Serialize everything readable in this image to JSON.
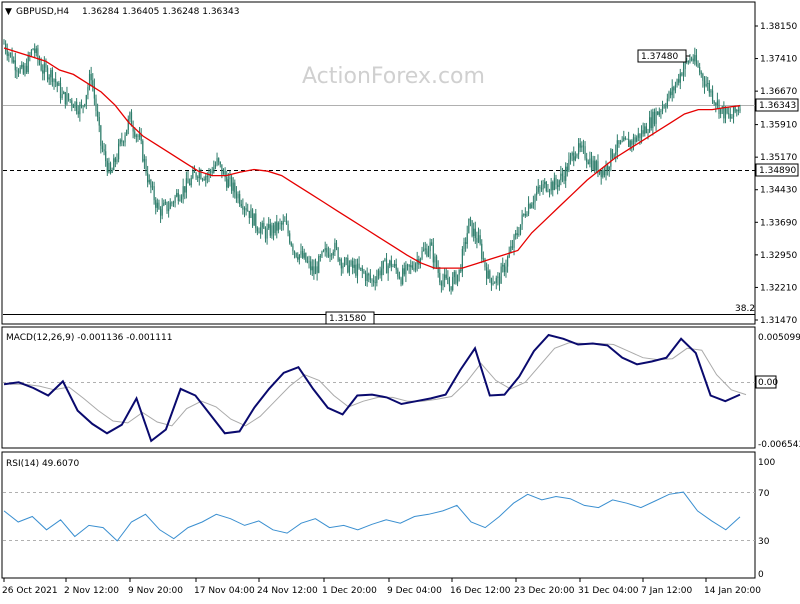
{
  "header": {
    "symbol": "GBPUSD,H4",
    "ohlc": "1.36284 1.36405 1.36248 1.36343",
    "watermark": "ActionForex.com"
  },
  "colors": {
    "candle": "#2e7d6b",
    "ma": "#e60000",
    "macd_line": "#0a0a6e",
    "macd_signal": "#aaaaaa",
    "rsi": "#3a8fd0",
    "grid": "#b0b0b0",
    "axis": "#000000"
  },
  "chart_data": [
    {
      "type": "candlestick",
      "panel": "price",
      "title": "GBPUSD,H4",
      "y_ticks": [
        "1.38150",
        "1.37410",
        "1.36670",
        "1.35910",
        "1.35170",
        "1.34430",
        "1.33690",
        "1.32950",
        "1.32210",
        "1.31470"
      ],
      "ylim": [
        1.3147,
        1.3815
      ],
      "x_ticks": [
        "26 Oct 2021",
        "2 Nov 12:00",
        "9 Nov 20:00",
        "17 Nov 04:00",
        "24 Nov 12:00",
        "1 Dec 20:00",
        "9 Dec 04:00",
        "16 Dec 12:00",
        "23 Dec 20:00",
        "31 Dec 04:00",
        "7 Jan 12:00",
        "14 Jan 20:00"
      ],
      "close_series": [
        1.3775,
        1.3735,
        1.3705,
        1.3765,
        1.3715,
        1.3705,
        1.3655,
        1.3645,
        1.3625,
        1.3705,
        1.3545,
        1.3475,
        1.3545,
        1.3605,
        1.3555,
        1.3455,
        1.3395,
        1.3405,
        1.3435,
        1.3455,
        1.3485,
        1.3475,
        1.3505,
        1.3465,
        1.3435,
        1.3405,
        1.3365,
        1.3345,
        1.3355,
        1.3365,
        1.3305,
        1.3285,
        1.3255,
        1.3295,
        1.3315,
        1.3275,
        1.3265,
        1.3255,
        1.3235,
        1.3265,
        1.3275,
        1.3245,
        1.3265,
        1.3295,
        1.3315,
        1.3245,
        1.3225,
        1.3255,
        1.3365,
        1.3325,
        1.3245,
        1.3235,
        1.3285,
        1.3345,
        1.3405,
        1.3435,
        1.3455,
        1.3455,
        1.3485,
        1.3535,
        1.3525,
        1.3495,
        1.3485,
        1.3535,
        1.3545,
        1.3555,
        1.3575,
        1.3605,
        1.3635,
        1.3665,
        1.3715,
        1.3745,
        1.3705,
        1.3665,
        1.3625,
        1.3605,
        1.3634
      ],
      "ma_series": [
        1.3765,
        1.3755,
        1.3745,
        1.3735,
        1.3715,
        1.3705,
        1.3685,
        1.3665,
        1.3635,
        1.3595,
        1.3565,
        1.3545,
        1.3525,
        1.3505,
        1.3485,
        1.3475,
        1.3475,
        1.3483,
        1.3489,
        1.3485,
        1.3475,
        1.3455,
        1.3435,
        1.3415,
        1.3395,
        1.3375,
        1.3355,
        1.3335,
        1.3315,
        1.3295,
        1.3277,
        1.3265,
        1.3265,
        1.3265,
        1.3275,
        1.3285,
        1.3295,
        1.3305,
        1.3345,
        1.3375,
        1.3405,
        1.3435,
        1.3465,
        1.349,
        1.3515,
        1.3535,
        1.3555,
        1.3575,
        1.3595,
        1.3615,
        1.3625,
        1.3625,
        1.363,
        1.3634
      ],
      "annotations": {
        "current_price": "1.36343",
        "level_line": "1.34890",
        "high_label": "1.37480",
        "low_label": "1.31580",
        "fib_label": "38.2"
      }
    },
    {
      "type": "line",
      "panel": "macd",
      "title": "MACD(12,26,9) -0.001136 -0.001111",
      "y_ticks": [
        "0.005099",
        "0.00",
        "-0.006543"
      ],
      "zero_label": "0.00",
      "ylim": [
        -0.006543,
        0.005099
      ],
      "series": [
        {
          "role": "macd",
          "values": [
            0.0,
            0.0002,
            -0.0004,
            -0.0012,
            0.0003,
            -0.0028,
            -0.0042,
            -0.0052,
            -0.0043,
            -0.0015,
            -0.006,
            -0.0048,
            -0.0005,
            -0.0012,
            -0.0032,
            -0.0052,
            -0.005,
            -0.0025,
            -0.0005,
            0.0012,
            0.0018,
            -0.0005,
            -0.0025,
            -0.0032,
            -0.0012,
            -0.0011,
            -0.0014,
            -0.0021,
            -0.0018,
            -0.0015,
            -0.0011,
            0.0015,
            0.0038,
            -0.0012,
            -0.0011,
            0.0008,
            0.0035,
            0.0052,
            0.0048,
            0.0042,
            0.0043,
            0.0041,
            0.0028,
            0.0021,
            0.0024,
            0.0028,
            0.0048,
            0.0033,
            -0.0012,
            -0.0018,
            -0.0011
          ]
        },
        {
          "role": "signal",
          "values": [
            0.0,
            0.0,
            -0.0002,
            -0.0006,
            -0.0003,
            -0.0015,
            -0.0028,
            -0.0039,
            -0.0041,
            -0.003,
            -0.004,
            -0.0044,
            -0.0026,
            -0.0018,
            -0.0024,
            -0.0037,
            -0.0044,
            -0.0034,
            -0.0018,
            -0.0002,
            0.001,
            0.0004,
            -0.0012,
            -0.0024,
            -0.0018,
            -0.0014,
            -0.0014,
            -0.0018,
            -0.0018,
            -0.0016,
            -0.0013,
            0.0002,
            0.0022,
            0.0004,
            -0.0005,
            0.0002,
            0.002,
            0.0038,
            0.0044,
            0.0043,
            0.0043,
            0.0042,
            0.0035,
            0.0028,
            0.0026,
            0.0027,
            0.0038,
            0.0036,
            0.001,
            -0.0006,
            -0.0011
          ]
        }
      ]
    },
    {
      "type": "line",
      "panel": "rsi",
      "title": "RSI(14) 49.6070",
      "y_ticks": [
        "100",
        "70",
        "30",
        "0"
      ],
      "ylim": [
        0,
        100
      ],
      "levels": [
        70,
        30
      ],
      "series": [
        {
          "role": "rsi",
          "values": [
            55,
            45,
            50,
            38,
            47,
            32,
            42,
            40,
            28,
            45,
            52,
            38,
            30,
            40,
            45,
            52,
            48,
            42,
            46,
            38,
            35,
            44,
            48,
            40,
            42,
            38,
            43,
            47,
            44,
            50,
            52,
            55,
            60,
            45,
            40,
            50,
            62,
            70,
            65,
            68,
            66,
            60,
            58,
            65,
            62,
            58,
            64,
            70,
            72,
            55,
            46,
            38,
            49.6
          ]
        }
      ]
    }
  ]
}
